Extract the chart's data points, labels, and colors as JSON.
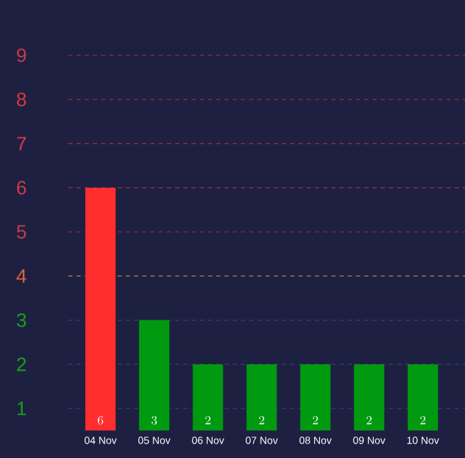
{
  "chart_data": {
    "type": "bar",
    "categories": [
      "04 Nov",
      "05 Nov",
      "06 Nov",
      "07 Nov",
      "08 Nov",
      "09 Nov",
      "10 Nov"
    ],
    "values": [
      6,
      3,
      2,
      2,
      2,
      2,
      2
    ],
    "colors": [
      "#ff2d2d",
      "#009a10",
      "#009a10",
      "#009a10",
      "#009a10",
      "#009a10",
      "#009a10"
    ],
    "data_labels": true,
    "ylim": [
      0.5,
      9
    ],
    "yticks": [
      1,
      2,
      3,
      4,
      5,
      6,
      7,
      8,
      9
    ],
    "grid": "y",
    "ref_lines": [
      {
        "axis": "y",
        "value": 4,
        "color": "#c08a30",
        "line_style": "dashed"
      },
      {
        "axis": "y",
        "value": 5,
        "color": "#8c2c44",
        "line_style": "dashed"
      },
      {
        "axis": "y",
        "value": 6,
        "color": "#962a40",
        "line_style": "dashed"
      },
      {
        "axis": "y",
        "value": 7,
        "color": "#a0283a",
        "line_style": "dashed"
      },
      {
        "axis": "y",
        "value": 8,
        "color": "#aa2636",
        "line_style": "dashed"
      },
      {
        "axis": "y",
        "value": 9,
        "color": "#842c46",
        "line_style": "dashed"
      }
    ]
  }
}
